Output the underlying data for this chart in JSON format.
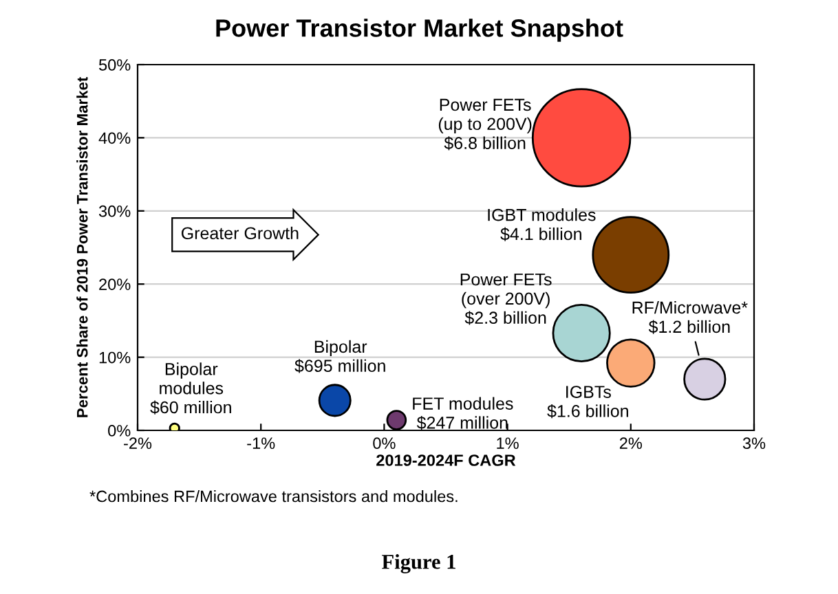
{
  "chart_data": {
    "type": "bubble",
    "title": "Power Transistor Market Snapshot",
    "xlabel": "2019-2024F CAGR",
    "ylabel": "Percent Share of 2019 Power Transistor Market",
    "x": [
      1.6,
      2.0,
      1.6,
      2.0,
      2.6,
      -0.4,
      0.1,
      -1.7
    ],
    "series": [
      {
        "values": [
          40,
          24,
          13.3,
          9.2,
          7.0,
          4.1,
          1.4,
          0.3
        ],
        "sizes": [
          1,
          0.603,
          0.338,
          0.235,
          0.176,
          0.102,
          0.036,
          0.009
        ],
        "colors": [
          "#ff4b40",
          "#7a3e00",
          "#a8d5d3",
          "#fbaa77",
          "#d8d0e3",
          "#0a47a8",
          "#6e3a6e",
          "#ffff80"
        ]
      }
    ],
    "xlim": [
      -2,
      3
    ],
    "xticks": [
      {
        "value": -2,
        "label": "-2%"
      },
      {
        "value": -1,
        "label": "-1%"
      },
      {
        "value": 0,
        "label": "0%"
      },
      {
        "value": 1,
        "label": "1%"
      },
      {
        "value": 2,
        "label": "2%"
      },
      {
        "value": 3,
        "label": "3%"
      }
    ],
    "ylim": [
      0,
      50
    ],
    "yticks": [
      {
        "value": 0,
        "label": "0%"
      },
      {
        "value": 10,
        "label": "10%"
      },
      {
        "value": 20,
        "label": "20%"
      },
      {
        "value": 30,
        "label": "30%"
      },
      {
        "value": 40,
        "label": "40%"
      },
      {
        "value": 50,
        "label": "50%"
      }
    ],
    "grid": "y",
    "annotations": [
      {
        "text": "Power FETs\n(up to 200V)\n$6.8 billion",
        "x": 1.6,
        "y": 40
      },
      {
        "text": "IGBT modules\n$4.1 billion",
        "x": 2.0,
        "y": 24
      },
      {
        "text": "Power FETs\n(over 200V)\n$2.3 billion",
        "x": 1.6,
        "y": 13.3
      },
      {
        "text": "IGBTs\n$1.6 billion",
        "x": 2.0,
        "y": 9.2
      },
      {
        "text": "RF/Microwave*\n$1.2 billion",
        "x": 2.6,
        "y": 7.0
      },
      {
        "text": "Bipolar\n$695 million",
        "x": -0.4,
        "y": 4.1
      },
      {
        "text": "FET modules\n$247 million",
        "x": 0.1,
        "y": 1.4
      },
      {
        "text": "Bipolar\nmodules\n$60 million",
        "x": -1.7,
        "y": 0.3
      },
      "Greater Growth",
      "*Combines RF/Microwave transistors and modules.",
      "Figure 1"
    ]
  }
}
